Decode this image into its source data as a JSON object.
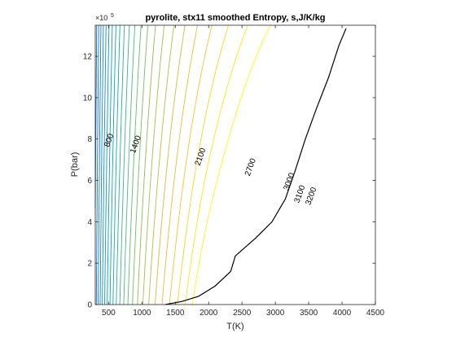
{
  "chart_data": {
    "type": "contour",
    "title": "pyrolite, stx11 smoothed Entropy, s,J/K/kg",
    "xlabel": "T(K)",
    "ylabel": "P(bar)",
    "xlim": [
      300,
      4500
    ],
    "ylim": [
      0,
      1350000
    ],
    "y_exponent_label": "×10",
    "y_exponent_power": "5",
    "x_ticks": [
      500,
      1000,
      1500,
      2000,
      2500,
      3000,
      3500,
      4000,
      4500
    ],
    "y_ticks": [
      0,
      200000,
      400000,
      600000,
      800000,
      1000000,
      1200000
    ],
    "y_tick_labels": [
      "0",
      "2",
      "4",
      "6",
      "8",
      "10",
      "12"
    ],
    "contour_levels": [
      600,
      700,
      800,
      900,
      1000,
      1100,
      1200,
      1300,
      1400,
      1500,
      1600,
      1700,
      1800,
      1900,
      2000,
      2100,
      2200,
      2300,
      2400,
      2500,
      2600,
      2700,
      2800,
      2900,
      3000,
      3100,
      3200,
      3300
    ],
    "contour_labels": [
      {
        "text": "800",
        "x": 540,
        "y": 790000
      },
      {
        "text": "1400",
        "x": 940,
        "y": 770000
      },
      {
        "text": "2100",
        "x": 1910,
        "y": 710000
      },
      {
        "text": "2700",
        "x": 2660,
        "y": 660000
      },
      {
        "text": "3000",
        "x": 3240,
        "y": 590000
      },
      {
        "text": "3100",
        "x": 3400,
        "y": 530000
      },
      {
        "text": "3200",
        "x": 3570,
        "y": 520000
      }
    ],
    "highlight_curve": {
      "color": "#000000",
      "points": [
        [
          1350,
          0
        ],
        [
          1600,
          15000
        ],
        [
          1850,
          40000
        ],
        [
          2100,
          90000
        ],
        [
          2330,
          160000
        ],
        [
          2400,
          235000
        ],
        [
          2700,
          320000
        ],
        [
          2950,
          400000
        ],
        [
          3150,
          510000
        ],
        [
          3300,
          650000
        ],
        [
          3450,
          800000
        ],
        [
          3620,
          950000
        ],
        [
          3800,
          1100000
        ],
        [
          3950,
          1250000
        ],
        [
          4060,
          1335000
        ]
      ]
    },
    "grid": false,
    "colormap": "parula"
  }
}
